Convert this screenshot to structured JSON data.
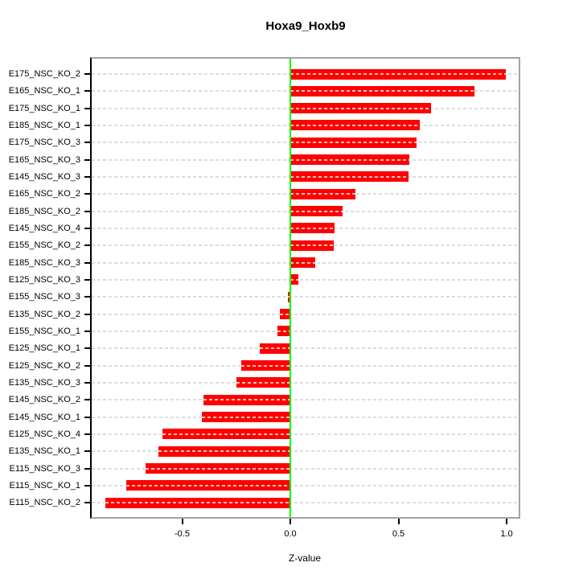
{
  "page": {
    "background": "#ffffff"
  },
  "chart_data": {
    "type": "bar",
    "orientation": "horizontal",
    "title": "Hoxa9_Hoxb9",
    "xlabel": "Z-value",
    "ylabel": "",
    "categories": [
      "E175_NSC_KO_2",
      "E165_NSC_KO_1",
      "E175_NSC_KO_1",
      "E185_NSC_KO_1",
      "E175_NSC_KO_3",
      "E165_NSC_KO_3",
      "E145_NSC_KO_3",
      "E165_NSC_KO_2",
      "E185_NSC_KO_2",
      "E145_NSC_KO_4",
      "E155_NSC_KO_2",
      "E185_NSC_KO_3",
      "E125_NSC_KO_3",
      "E155_NSC_KO_3",
      "E135_NSC_KO_2",
      "E155_NSC_KO_1",
      "E125_NSC_KO_1",
      "E125_NSC_KO_2",
      "E135_NSC_KO_3",
      "E145_NSC_KO_2",
      "E145_NSC_KO_1",
      "E125_NSC_KO_4",
      "E135_NSC_KO_1",
      "E115_NSC_KO_3",
      "E115_NSC_KO_1",
      "E115_NSC_KO_2"
    ],
    "values": [
      0.995,
      0.85,
      0.65,
      0.6,
      0.585,
      0.55,
      0.545,
      0.3,
      0.24,
      0.205,
      0.2,
      0.115,
      0.037,
      -0.012,
      -0.048,
      -0.06,
      -0.142,
      -0.227,
      -0.25,
      -0.4,
      -0.41,
      -0.59,
      -0.61,
      -0.67,
      -0.76,
      -0.854
    ],
    "x_ticks": {
      "labels": [
        "-0.5",
        "0.0",
        "0.5",
        "1.0"
      ],
      "values": [
        -0.5,
        0.0,
        0.5,
        1.0
      ]
    },
    "xlim": [
      -0.93,
      1.06
    ],
    "grid": "horizontal-dashed",
    "legend": "none",
    "colors": {
      "bar": "#ff0000",
      "bar_dash": "#ffc2c2",
      "zero_line": "#00ff00",
      "grid": "#dcdcdc",
      "frame": "#a3a3a3",
      "axis": "#000000",
      "text": "#000000"
    }
  }
}
